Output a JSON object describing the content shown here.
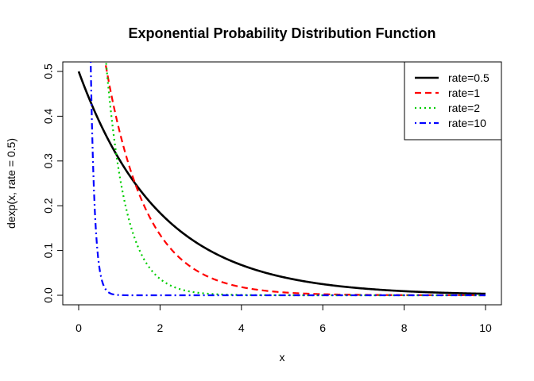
{
  "chart_data": {
    "type": "line",
    "title": "Exponential Probability Distribution Function",
    "xlabel": "x",
    "ylabel": "dexp(x, rate = 0.5)",
    "xlim": [
      0,
      10
    ],
    "ylim": [
      0,
      0.5
    ],
    "x_ticks": [
      "0",
      "2",
      "4",
      "6",
      "8",
      "10"
    ],
    "y_ticks": [
      "0.0",
      "0.1",
      "0.2",
      "0.3",
      "0.4",
      "0.5"
    ],
    "grid": false,
    "legend_position": "top-right",
    "series": [
      {
        "name": "rate=0.5",
        "rate": 0.5,
        "color": "#000000",
        "line_style": "solid"
      },
      {
        "name": "rate=1",
        "rate": 1,
        "color": "#ff0000",
        "line_style": "dashed"
      },
      {
        "name": "rate=2",
        "rate": 2,
        "color": "#00cd00",
        "line_style": "dotted"
      },
      {
        "name": "rate=10",
        "rate": 10,
        "color": "#0000ff",
        "line_style": "dotdash"
      }
    ]
  }
}
